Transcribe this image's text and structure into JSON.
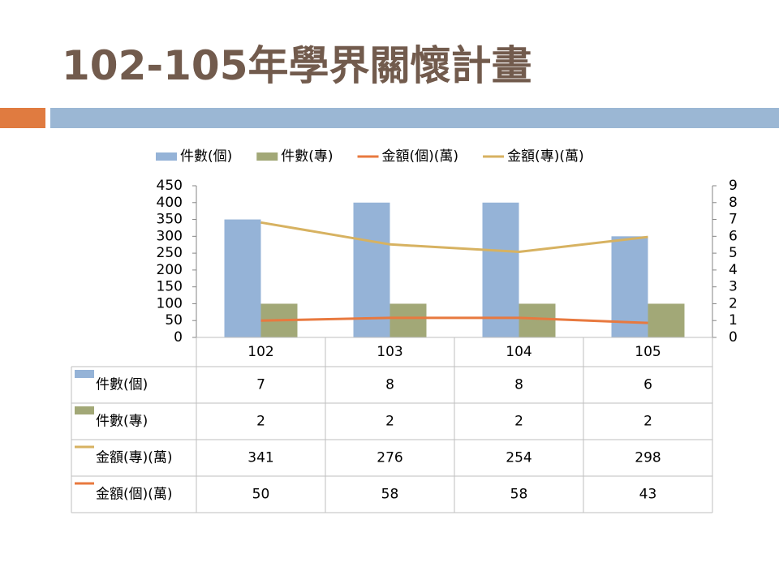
{
  "chart_data": {
    "type": "combo",
    "title": "102-105年學界關懷計畫",
    "categories": [
      "102",
      "103",
      "104",
      "105"
    ],
    "series": [
      {
        "name": "件數(個)",
        "type": "bar",
        "axis": "y2",
        "color": "#95b3d7",
        "values": [
          7,
          8,
          8,
          6
        ]
      },
      {
        "name": "件數(專)",
        "type": "bar",
        "axis": "y2",
        "color": "#a2a877",
        "values": [
          2,
          2,
          2,
          2
        ]
      },
      {
        "name": "金額(個)(萬)",
        "type": "line",
        "axis": "y",
        "color": "#e8793f",
        "values": [
          50,
          58,
          58,
          43
        ]
      },
      {
        "name": "金額(專)(萬)",
        "type": "line",
        "axis": "y",
        "color": "#d7b261",
        "values": [
          341,
          276,
          254,
          298
        ]
      }
    ],
    "ylim": [
      0,
      450
    ],
    "yticks": [
      0,
      50,
      100,
      150,
      200,
      250,
      300,
      350,
      400,
      450
    ],
    "y2lim": [
      0,
      9
    ],
    "y2ticks": [
      0,
      1,
      2,
      3,
      4,
      5,
      6,
      7,
      8,
      9
    ],
    "legend": "top",
    "data_table": true
  }
}
